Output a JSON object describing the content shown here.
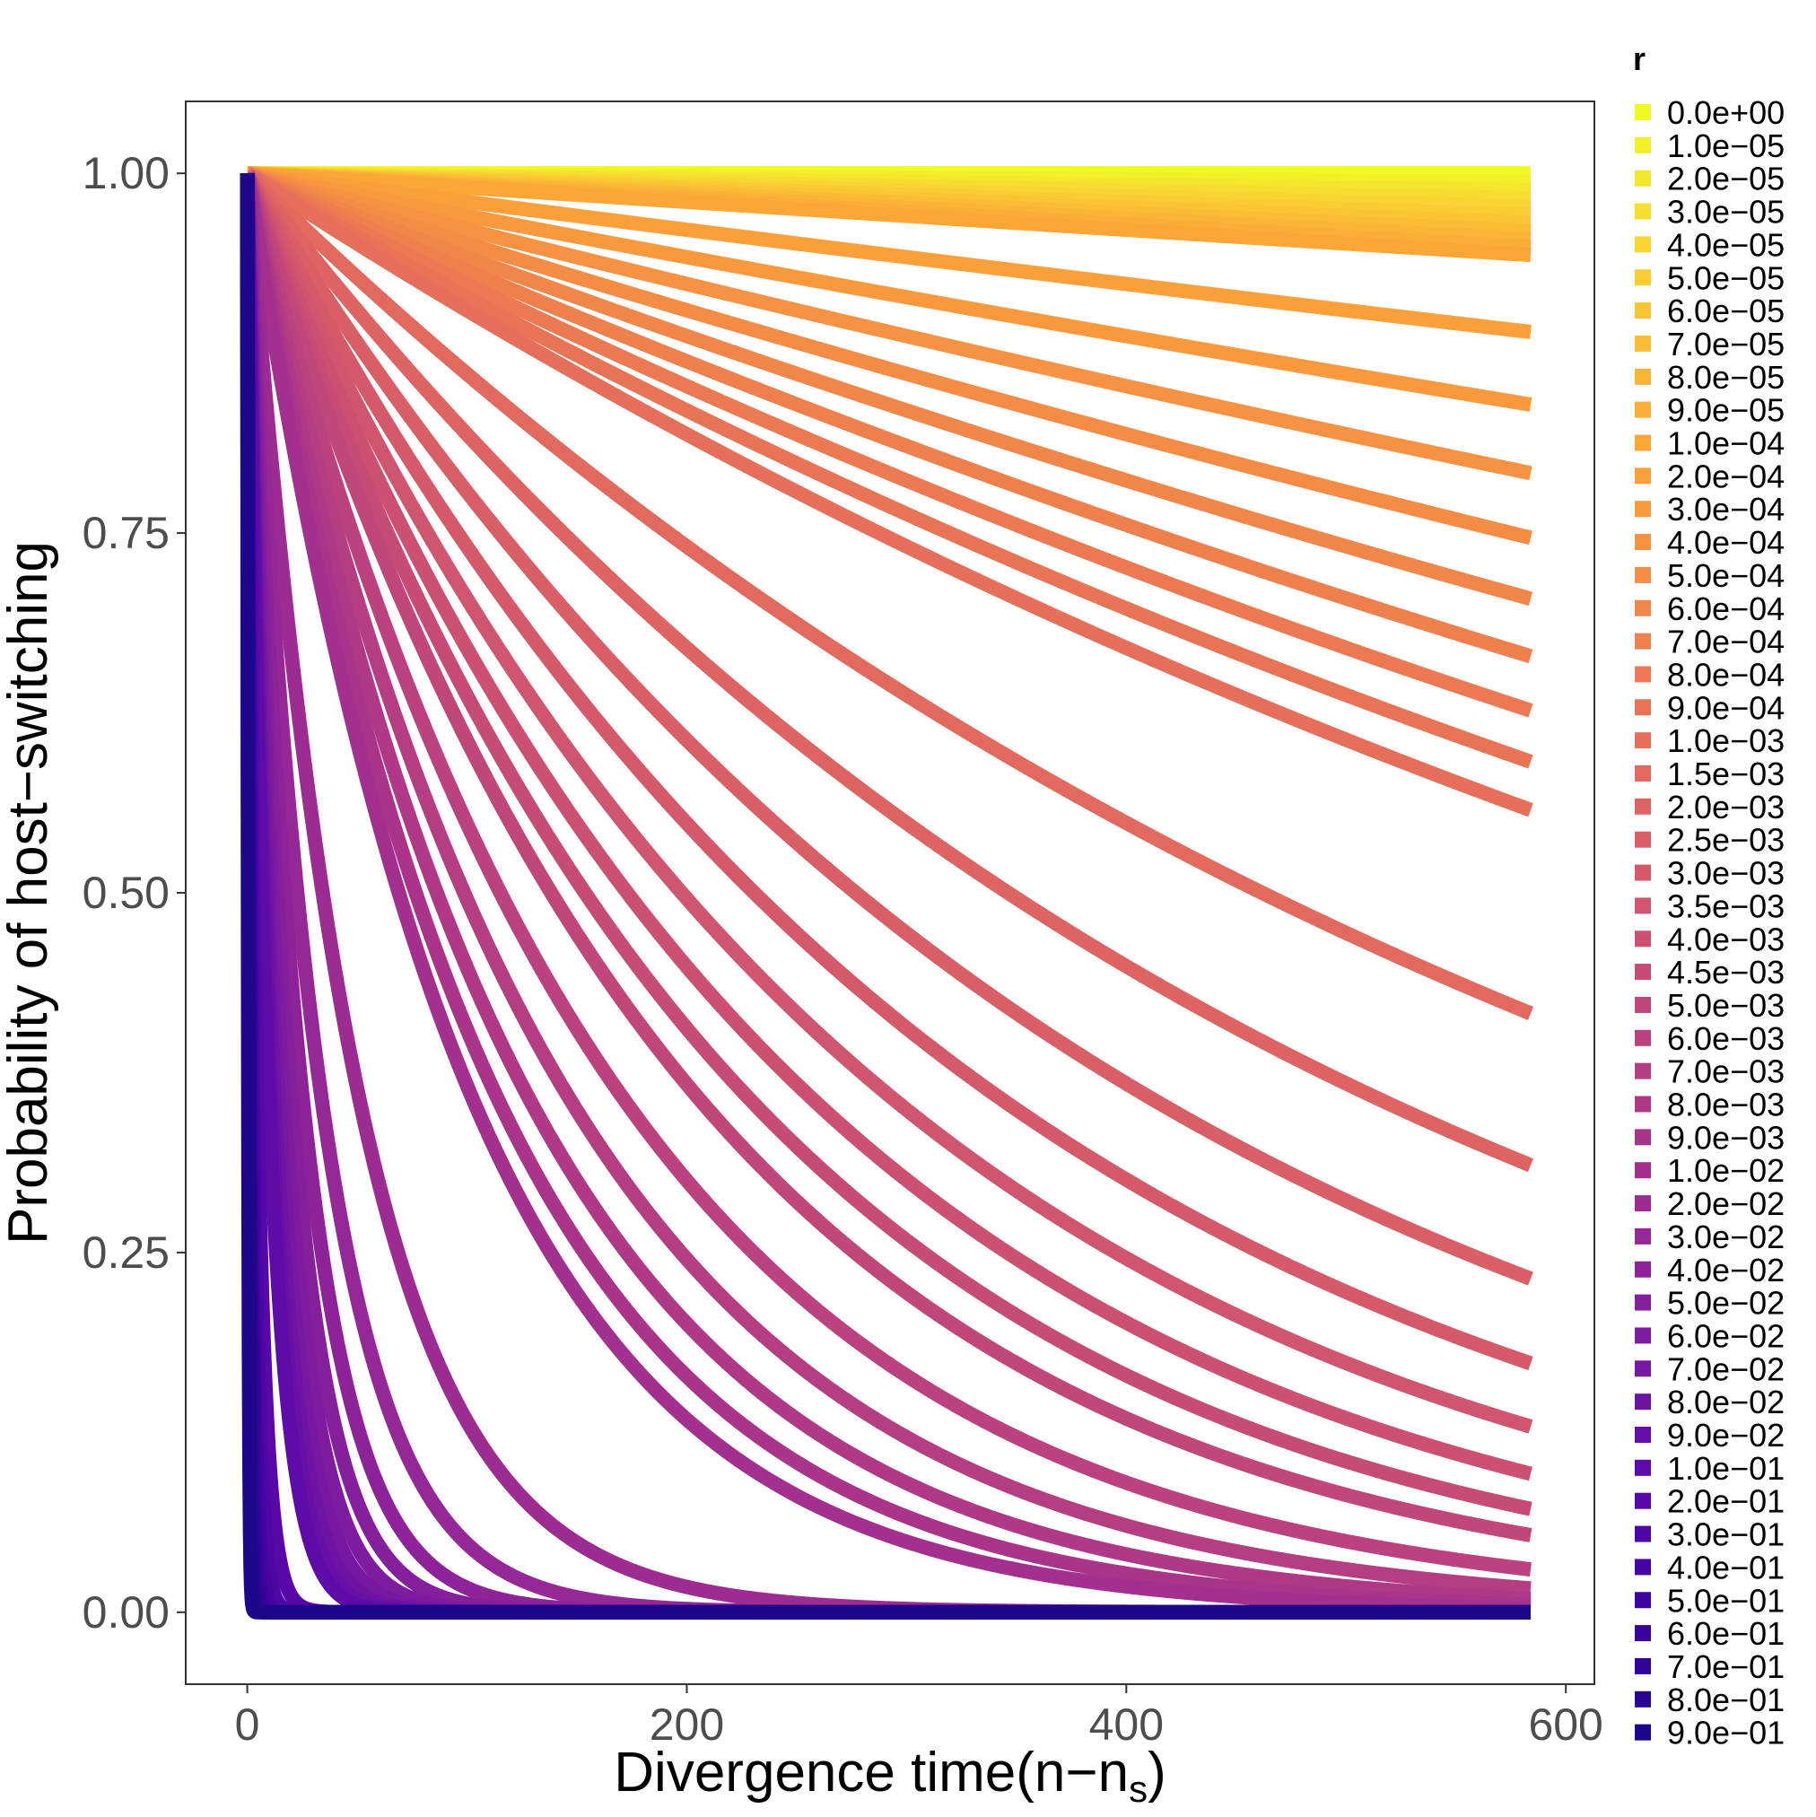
{
  "chart_data": {
    "type": "line",
    "formula": "y = (1 - r)^x",
    "xlabel": "Divergence time(n−n",
    "xlabel_subscript": "s",
    "xlabel_suffix": ")",
    "ylabel": "Probability of host−switching",
    "xlim": [
      -28,
      613
    ],
    "ylim": [
      -0.05,
      1.05
    ],
    "x_range": [
      0,
      584
    ],
    "x_ticks": [
      0,
      200,
      400,
      600
    ],
    "x_tick_labels": [
      "0",
      "200",
      "400",
      "600"
    ],
    "y_ticks": [
      0,
      0.25,
      0.5,
      0.75,
      1.0
    ],
    "y_tick_labels": [
      "0.00",
      "0.25",
      "0.50",
      "0.75",
      "1.00"
    ],
    "grid": false,
    "legend": {
      "title": "r",
      "placement": "right",
      "entries": [
        {
          "label": "0.0e+00",
          "r": 0.0,
          "color": "#f0f921"
        },
        {
          "label": "1.0e−05",
          "r": 1e-05,
          "color": "#f2f027"
        },
        {
          "label": "2.0e−05",
          "r": 2e-05,
          "color": "#f4e62c"
        },
        {
          "label": "3.0e−05",
          "r": 3e-05,
          "color": "#f6dd2f"
        },
        {
          "label": "4.0e−05",
          "r": 4e-05,
          "color": "#f8d532"
        },
        {
          "label": "5.0e−05",
          "r": 5e-05,
          "color": "#f9cc33"
        },
        {
          "label": "6.0e−05",
          "r": 6e-05,
          "color": "#fac434"
        },
        {
          "label": "7.0e−05",
          "r": 7e-05,
          "color": "#fbbc35"
        },
        {
          "label": "8.0e−05",
          "r": 8e-05,
          "color": "#fbb536"
        },
        {
          "label": "9.0e−05",
          "r": 9e-05,
          "color": "#fbae37"
        },
        {
          "label": "1.0e−04",
          "r": 0.0001,
          "color": "#faa738"
        },
        {
          "label": "2.0e−04",
          "r": 0.0002,
          "color": "#f9a03b"
        },
        {
          "label": "3.0e−04",
          "r": 0.0003,
          "color": "#f8993e"
        },
        {
          "label": "4.0e−04",
          "r": 0.0004,
          "color": "#f69242"
        },
        {
          "label": "5.0e−04",
          "r": 0.0005,
          "color": "#f48c46"
        },
        {
          "label": "6.0e−04",
          "r": 0.0006,
          "color": "#f1864a"
        },
        {
          "label": "7.0e−04",
          "r": 0.0007,
          "color": "#ee804e"
        },
        {
          "label": "8.0e−04",
          "r": 0.0008,
          "color": "#eb7a52"
        },
        {
          "label": "9.0e−04",
          "r": 0.0009,
          "color": "#e87456"
        },
        {
          "label": "1.0e−03",
          "r": 0.001,
          "color": "#e56f5a"
        },
        {
          "label": "1.5e−03",
          "r": 0.0015,
          "color": "#e1695e"
        },
        {
          "label": "2.0e−03",
          "r": 0.002,
          "color": "#dd6462"
        },
        {
          "label": "2.5e−03",
          "r": 0.0025,
          "color": "#d95f66"
        },
        {
          "label": "3.0e−03",
          "r": 0.003,
          "color": "#d45a6a"
        },
        {
          "label": "3.5e−03",
          "r": 0.0035,
          "color": "#d0556e"
        },
        {
          "label": "4.0e−03",
          "r": 0.004,
          "color": "#cb5072"
        },
        {
          "label": "4.5e−03",
          "r": 0.0045,
          "color": "#c64b76"
        },
        {
          "label": "5.0e−03",
          "r": 0.005,
          "color": "#c1467a"
        },
        {
          "label": "6.0e−03",
          "r": 0.006,
          "color": "#bb427e"
        },
        {
          "label": "7.0e−03",
          "r": 0.007,
          "color": "#b53d82"
        },
        {
          "label": "8.0e−03",
          "r": 0.008,
          "color": "#af3986"
        },
        {
          "label": "9.0e−03",
          "r": 0.009,
          "color": "#a9348a"
        },
        {
          "label": "1.0e−02",
          "r": 0.01,
          "color": "#a3308e"
        },
        {
          "label": "2.0e−02",
          "r": 0.02,
          "color": "#9c2b92"
        },
        {
          "label": "3.0e−02",
          "r": 0.03,
          "color": "#952796"
        },
        {
          "label": "4.0e−02",
          "r": 0.04,
          "color": "#8e2399"
        },
        {
          "label": "5.0e−02",
          "r": 0.05,
          "color": "#861f9c"
        },
        {
          "label": "6.0e−02",
          "r": 0.06,
          "color": "#7f1b9f"
        },
        {
          "label": "7.0e−02",
          "r": 0.07,
          "color": "#7717a2"
        },
        {
          "label": "8.0e−02",
          "r": 0.08,
          "color": "#6f13a4"
        },
        {
          "label": "9.0e−02",
          "r": 0.09,
          "color": "#670fa6"
        },
        {
          "label": "1.0e−01",
          "r": 0.1,
          "color": "#5f0ba7"
        },
        {
          "label": "2.0e−01",
          "r": 0.2,
          "color": "#5708a7"
        },
        {
          "label": "3.0e−01",
          "r": 0.3,
          "color": "#4f06a6"
        },
        {
          "label": "4.0e−01",
          "r": 0.4,
          "color": "#4704a3"
        },
        {
          "label": "5.0e−01",
          "r": 0.5,
          "color": "#3f039f"
        },
        {
          "label": "6.0e−01",
          "r": 0.6,
          "color": "#37039a"
        },
        {
          "label": "7.0e−01",
          "r": 0.7,
          "color": "#2f0595"
        },
        {
          "label": "8.0e−01",
          "r": 0.8,
          "color": "#270690"
        },
        {
          "label": "9.0e−01",
          "r": 0.9,
          "color": "#1e078b"
        }
      ]
    }
  }
}
